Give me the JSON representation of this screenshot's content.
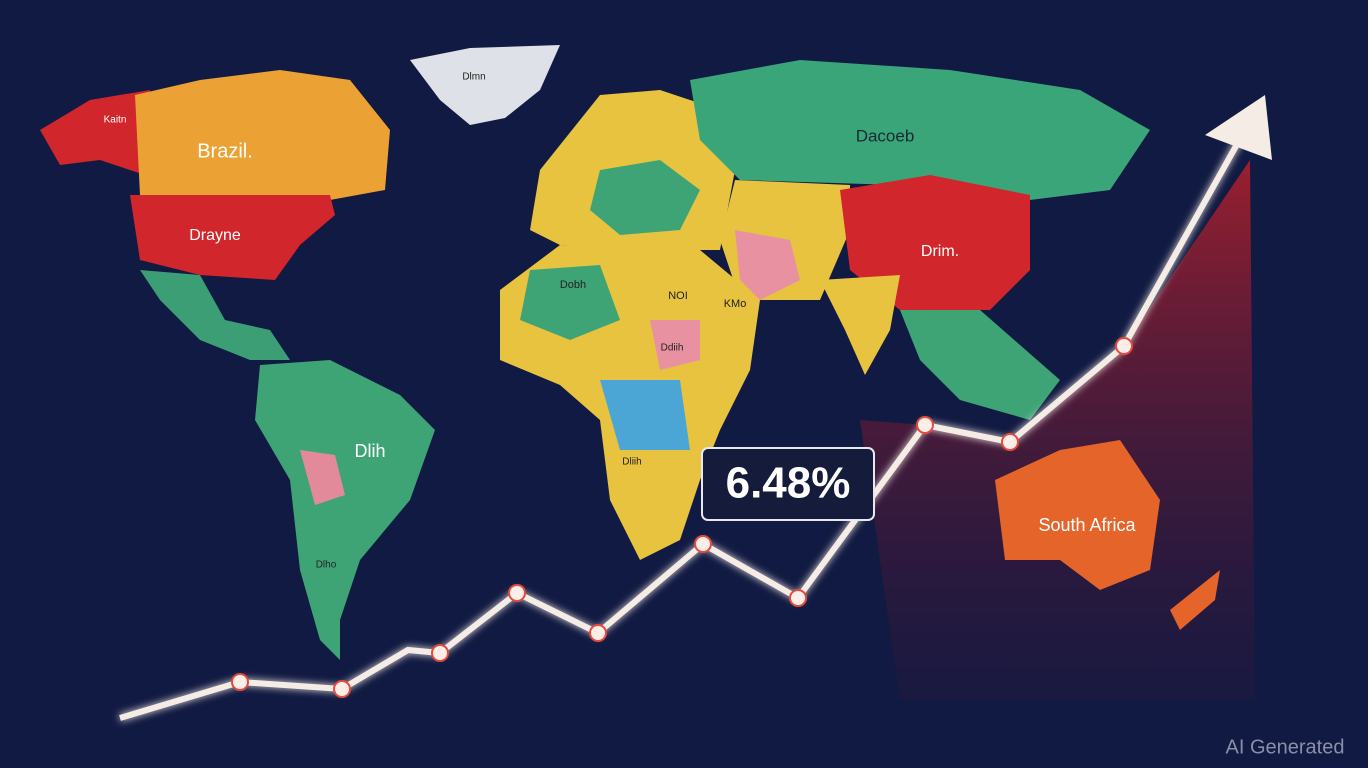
{
  "map_labels": [
    "Brazil.",
    "Drayne",
    "Dacoeb",
    "Drim.",
    "Dlih",
    "South Africa",
    "Dlmn",
    "Dobh",
    "NOI",
    "KMo",
    "Ddiih",
    "Dliih",
    "Dlho",
    "Kaitn"
  ],
  "callout": {
    "value_label": "6.48%"
  },
  "watermark": "AI Generated"
}
